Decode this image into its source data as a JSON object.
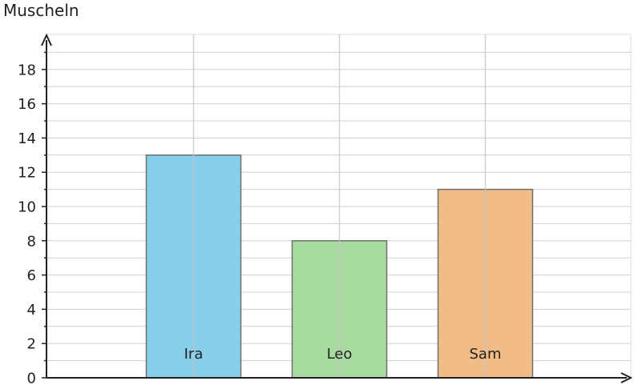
{
  "chart_data": {
    "type": "bar",
    "title": "",
    "ylabel": "Muscheln",
    "xlabel": "",
    "categories": [
      "Ira",
      "Leo",
      "Sam"
    ],
    "values": [
      13,
      8,
      11
    ],
    "colors": [
      "#87CEEB",
      "#A8DBA0",
      "#F2BC87"
    ],
    "ylim": [
      0,
      20
    ],
    "yticks": [
      0,
      2,
      4,
      6,
      8,
      10,
      12,
      14,
      16,
      18
    ],
    "grid": true
  }
}
